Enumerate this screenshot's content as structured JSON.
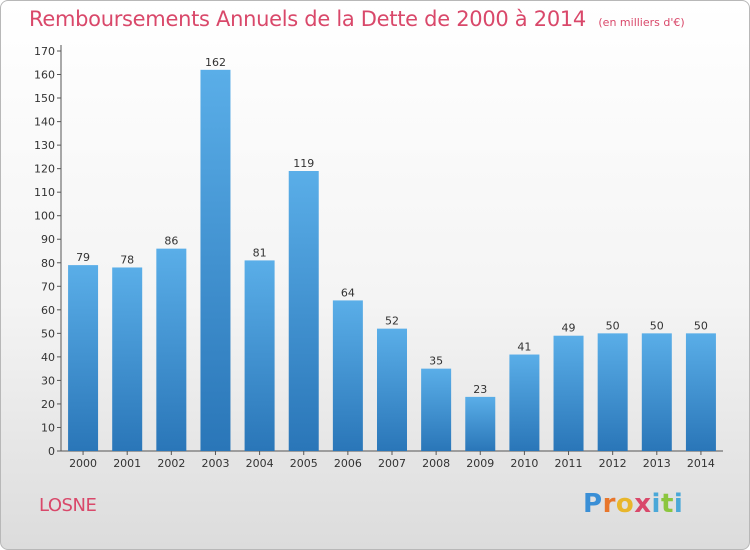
{
  "header": {
    "title": "Remboursements Annuels de la Dette de 2000 à 2014",
    "unit": "(en milliers d'€)"
  },
  "footer": {
    "commune": "LOSNE",
    "logo_letters": [
      "P",
      "r",
      "o",
      "x",
      "i",
      "t",
      "i"
    ],
    "logo_colors": [
      "#3a8fd6",
      "#e8762b",
      "#e8b62b",
      "#d9486a",
      "#4aa8d8",
      "#8cc63f",
      "#4aa8d8"
    ]
  },
  "chart_data": {
    "type": "bar",
    "title": "Remboursements Annuels de la Dette de 2000 à 2014",
    "xlabel": "",
    "ylabel": "",
    "categories": [
      "2000",
      "2001",
      "2002",
      "2003",
      "2004",
      "2005",
      "2006",
      "2007",
      "2008",
      "2009",
      "2010",
      "2011",
      "2012",
      "2013",
      "2014"
    ],
    "values": [
      79,
      78,
      86,
      162,
      81,
      119,
      64,
      52,
      35,
      23,
      41,
      49,
      50,
      50,
      50
    ],
    "ylim": [
      0,
      170
    ],
    "yticks": [
      0,
      10,
      20,
      30,
      40,
      50,
      60,
      70,
      80,
      90,
      100,
      110,
      120,
      130,
      140,
      150,
      160,
      170
    ],
    "grid": false,
    "bar_color_top": "#5aaee8",
    "bar_color_bottom": "#2a76b8"
  }
}
